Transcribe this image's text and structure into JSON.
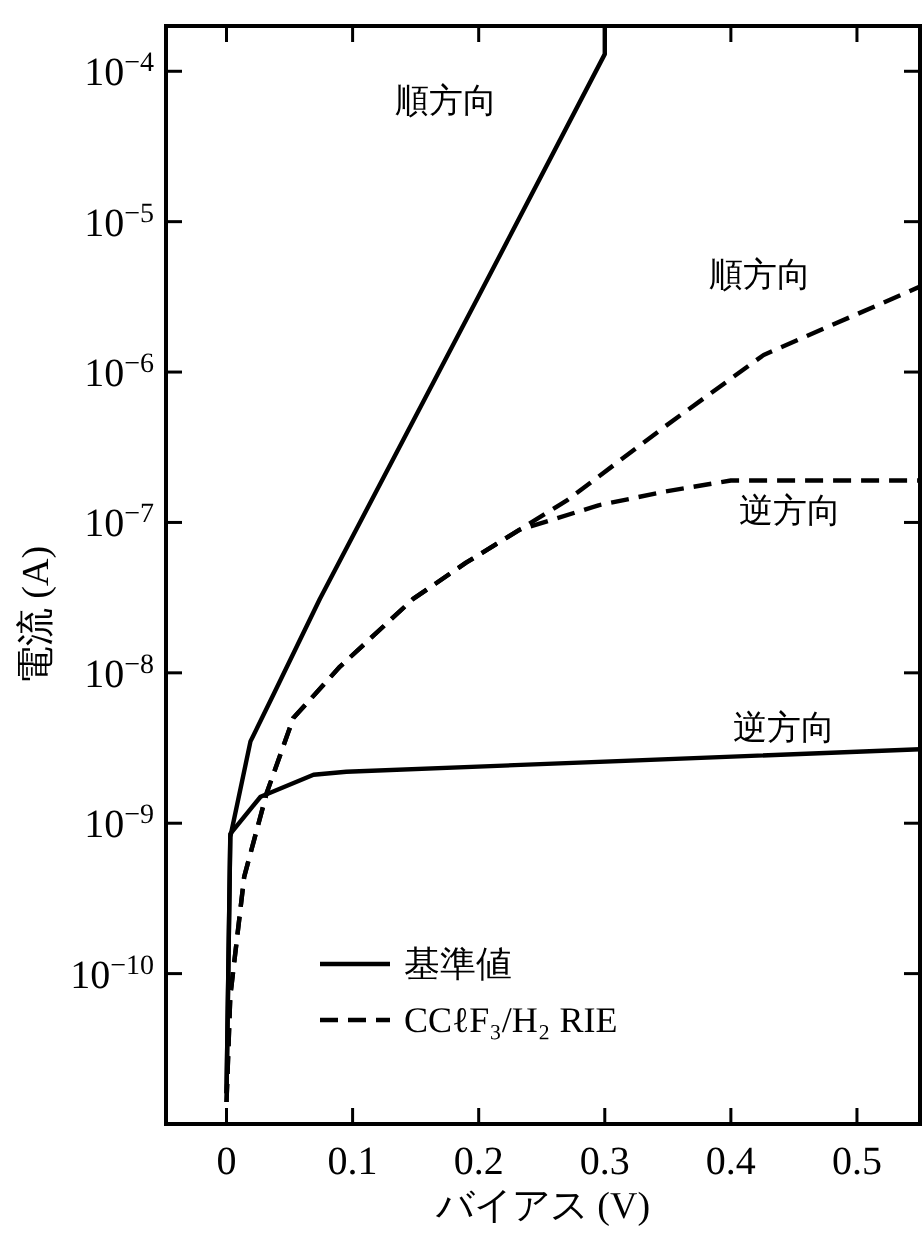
{
  "chart_data": {
    "type": "line",
    "xlabel": "バイアス (V)",
    "ylabel": "電流 (A)",
    "log": "y",
    "legend": "bottom",
    "xlim": [
      -0.048,
      0.55
    ],
    "ylim": [
      1e-11,
      0.0002
    ],
    "xticks": [
      0,
      0.1,
      0.2,
      0.3,
      0.4,
      0.5
    ],
    "yticks": [
      {
        "value": 1e-10,
        "label": "10$^{−10}$"
      },
      {
        "value": 1e-09,
        "label": "10$^{−9}$"
      },
      {
        "value": 1e-08,
        "label": "10$^{−8}$"
      },
      {
        "value": 1e-07,
        "label": "10$^{−7}$"
      },
      {
        "value": 1e-06,
        "label": "10$^{−6}$"
      },
      {
        "value": 1e-05,
        "label": "10$^{−5}$"
      },
      {
        "value": 0.0001,
        "label": "10$^{−4}$"
      }
    ],
    "series": [
      {
        "name": "基準値",
        "color": "#000000",
        "line_style": "solid",
        "x": [
          0,
          0.003,
          0.019,
          0.038,
          0.074,
          0.2,
          0.3,
          0.3
        ],
        "values": [
          1.6e-11,
          8.1e-10,
          3.5e-09,
          7.4e-09,
          3.1e-08,
          3.2e-06,
          0.00013,
          0.0002
        ]
      },
      {
        "color": "#000000",
        "line_style": "solid",
        "x": [
          0,
          0.003,
          0.027,
          0.069,
          0.095,
          0.55
        ],
        "values": [
          1.6e-11,
          8.5e-10,
          1.5e-09,
          2.1e-09,
          2.2e-09,
          3.1e-09
        ]
      },
      {
        "name": "CCℓF₃/H₂ RIE",
        "color": "#000000",
        "line_style": "dashed",
        "x": [
          0,
          0.003,
          0.014,
          0.032,
          0.053,
          0.09,
          0.148,
          0.19,
          0.27,
          0.347,
          0.426,
          0.55
        ],
        "values": [
          1.4e-11,
          7.1e-11,
          4.4e-10,
          1.6e-09,
          5e-09,
          1.1e-08,
          3.1e-08,
          5.4e-08,
          1.4e-07,
          4.3e-07,
          1.3e-06,
          3.7e-06
        ]
      },
      {
        "color": "#000000",
        "line_style": "dashed",
        "x": [
          0,
          0.003,
          0.014,
          0.032,
          0.053,
          0.09,
          0.148,
          0.19,
          0.232,
          0.295,
          0.347,
          0.4,
          0.55
        ],
        "values": [
          1.4e-11,
          7.1e-11,
          4.4e-10,
          1.6e-09,
          5e-09,
          1.1e-08,
          3.1e-08,
          5.4e-08,
          8.9e-08,
          1.3e-07,
          1.6e-07,
          1.9e-07,
          1.9e-07
        ]
      }
    ],
    "annotations": [
      "順方向",
      "順方向",
      "逆方向",
      "逆方向"
    ]
  }
}
